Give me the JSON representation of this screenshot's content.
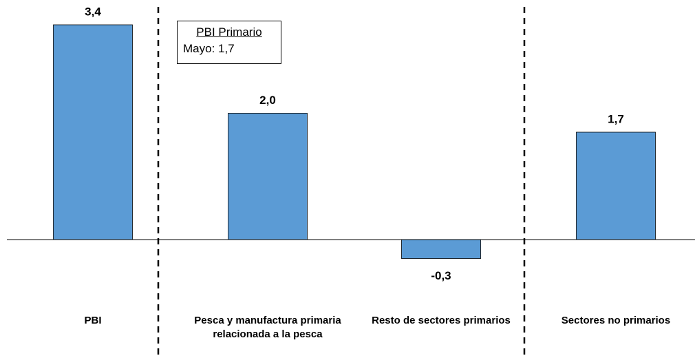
{
  "chart_data": {
    "type": "bar",
    "categories": [
      "PBI",
      "Pesca y manufactura primaria relacionada a la pesca",
      "Resto de sectores primarios",
      "Sectores no primarios"
    ],
    "values": [
      3.4,
      2.0,
      -0.3,
      1.7
    ],
    "value_labels": [
      "3,4",
      "2,0",
      "-0,3",
      "1,7"
    ],
    "color": "#5b9bd5",
    "annotation": {
      "title": "PBI Primario",
      "text": "Mayo: 1,7"
    }
  }
}
